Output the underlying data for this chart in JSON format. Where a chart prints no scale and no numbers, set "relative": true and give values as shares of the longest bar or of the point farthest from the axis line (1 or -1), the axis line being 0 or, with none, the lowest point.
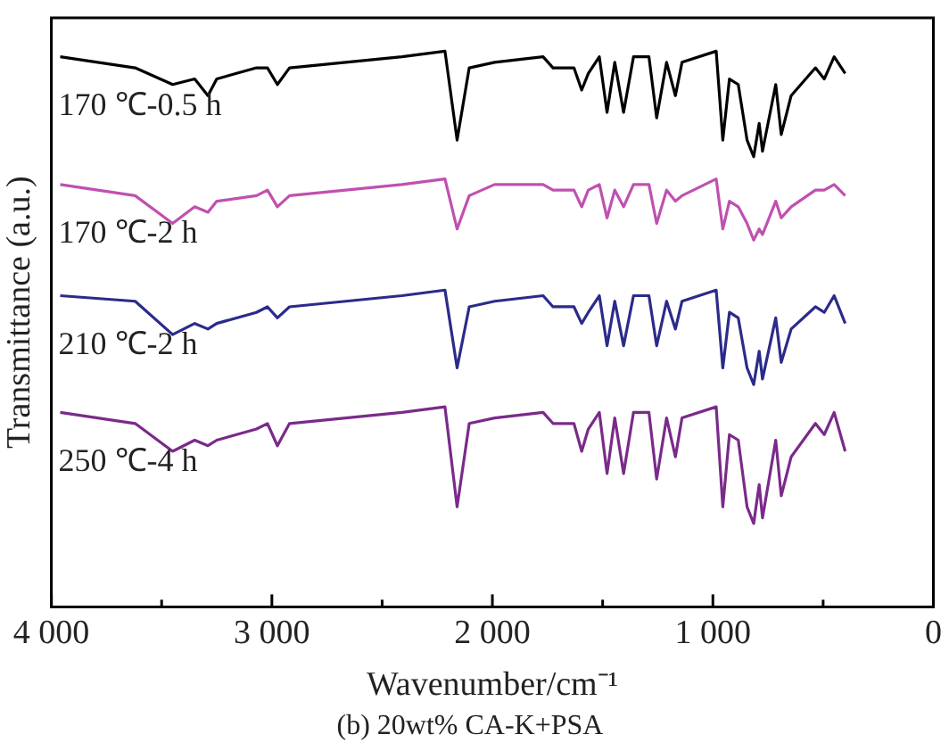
{
  "chart_data": {
    "type": "line",
    "title": "(b) 20wt% CA-K+PSA",
    "xlabel": "Wavenumber/cm⁻¹",
    "ylabel": "Transmittance (a.u.)",
    "relative": true,
    "x": [
      3960,
      3620,
      3450,
      3350,
      3290,
      3250,
      3070,
      3020,
      2975,
      2920,
      2410,
      2215,
      2160,
      2105,
      1990,
      1770,
      1725,
      1630,
      1595,
      1565,
      1515,
      1480,
      1445,
      1405,
      1360,
      1290,
      1255,
      1210,
      1170,
      1140,
      985,
      955,
      925,
      885,
      845,
      815,
      790,
      775,
      715,
      690,
      645,
      535,
      495,
      450,
      400
    ],
    "xlim": [
      4000,
      0
    ],
    "xticks": [
      {
        "value": 4000,
        "label": "4 000"
      },
      {
        "value": 3500,
        "label": null
      },
      {
        "value": 3000,
        "label": "3 000"
      },
      {
        "value": 2500,
        "label": null
      },
      {
        "value": 2000,
        "label": "2 000"
      },
      {
        "value": 1500,
        "label": null
      },
      {
        "value": 1000,
        "label": "1 000"
      },
      {
        "value": 500,
        "label": null
      },
      0
    ],
    "grid": false,
    "legend": false,
    "marker": "none",
    "line_style": "solid",
    "series": [
      {
        "name": "170 ℃-0.5 h",
        "color": "#000000",
        "values": [
          0.99,
          0.97,
          0.94,
          0.95,
          0.92,
          0.95,
          0.97,
          0.97,
          0.94,
          0.97,
          0.99,
          1.0,
          0.84,
          0.97,
          0.98,
          0.99,
          0.97,
          0.97,
          0.93,
          0.96,
          0.99,
          0.89,
          0.98,
          0.89,
          0.99,
          0.99,
          0.88,
          0.98,
          0.92,
          0.98,
          1.0,
          0.84,
          0.95,
          0.94,
          0.84,
          0.81,
          0.87,
          0.82,
          0.94,
          0.85,
          0.92,
          0.97,
          0.95,
          0.99,
          0.96
        ]
      },
      {
        "name": "170 ℃-2 h",
        "color": "#c050b0",
        "values": [
          0.76,
          0.74,
          0.69,
          0.72,
          0.71,
          0.73,
          0.74,
          0.75,
          0.72,
          0.74,
          0.76,
          0.77,
          0.68,
          0.74,
          0.76,
          0.76,
          0.75,
          0.75,
          0.72,
          0.75,
          0.76,
          0.7,
          0.75,
          0.72,
          0.76,
          0.76,
          0.69,
          0.75,
          0.73,
          0.74,
          0.77,
          0.68,
          0.73,
          0.72,
          0.69,
          0.66,
          0.68,
          0.67,
          0.73,
          0.7,
          0.72,
          0.75,
          0.75,
          0.76,
          0.74
        ]
      },
      {
        "name": "210 ℃-2 h",
        "color": "#2b2b8a",
        "values": [
          0.56,
          0.55,
          0.49,
          0.51,
          0.5,
          0.51,
          0.53,
          0.54,
          0.52,
          0.54,
          0.56,
          0.57,
          0.43,
          0.54,
          0.55,
          0.56,
          0.54,
          0.54,
          0.51,
          0.53,
          0.56,
          0.47,
          0.55,
          0.47,
          0.56,
          0.56,
          0.47,
          0.55,
          0.5,
          0.55,
          0.57,
          0.43,
          0.53,
          0.52,
          0.43,
          0.4,
          0.46,
          0.41,
          0.52,
          0.44,
          0.5,
          0.54,
          0.53,
          0.56,
          0.51
        ]
      },
      {
        "name": "250 ℃-4 h",
        "color": "#7a2a8a",
        "values": [
          0.35,
          0.33,
          0.28,
          0.3,
          0.29,
          0.3,
          0.32,
          0.33,
          0.29,
          0.33,
          0.35,
          0.36,
          0.18,
          0.33,
          0.34,
          0.35,
          0.33,
          0.33,
          0.28,
          0.32,
          0.35,
          0.24,
          0.34,
          0.24,
          0.35,
          0.35,
          0.23,
          0.34,
          0.27,
          0.34,
          0.36,
          0.18,
          0.31,
          0.3,
          0.18,
          0.15,
          0.22,
          0.16,
          0.3,
          0.2,
          0.27,
          0.33,
          0.31,
          0.35,
          0.28
        ]
      }
    ]
  }
}
